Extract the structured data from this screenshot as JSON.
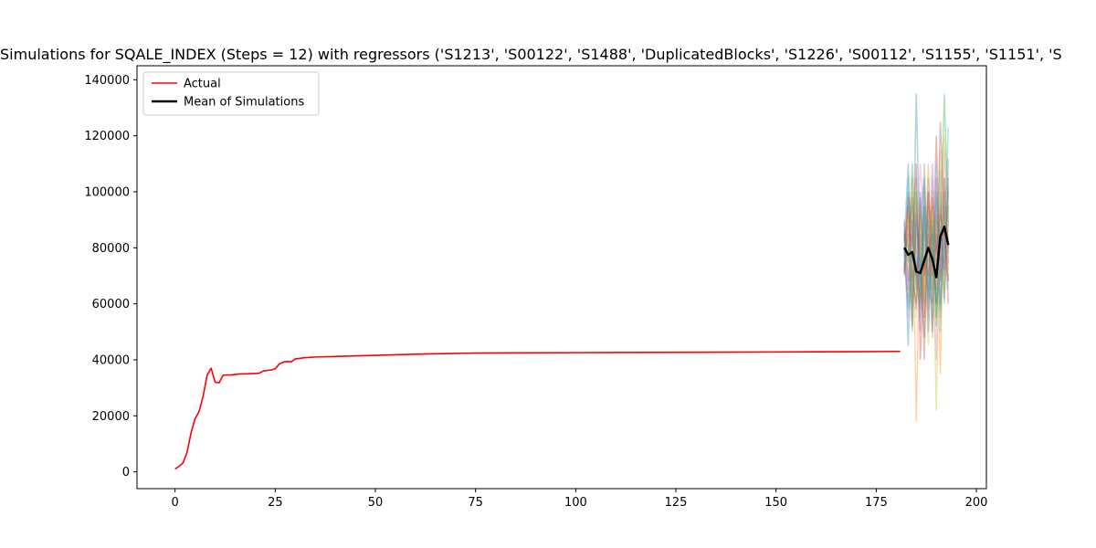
{
  "chart_data": {
    "type": "line",
    "title": "Simulations for SQALE_INDEX (Steps = 12) with regressors ('S1213', 'S00122', 'S1488', 'DuplicatedBlocks', 'S1226', 'S00112', 'S1155', 'S1151', 'S",
    "xlabel": "",
    "ylabel": "",
    "xlim": [
      -9.5,
      202.5
    ],
    "ylim": [
      -6000,
      145000
    ],
    "x_ticks": [
      0,
      25,
      50,
      75,
      100,
      125,
      150,
      175,
      200
    ],
    "y_ticks": [
      0,
      20000,
      40000,
      60000,
      80000,
      100000,
      120000,
      140000
    ],
    "grid": false,
    "legend_position": "upper left",
    "legend": [
      {
        "label": "Actual",
        "color": "#ff0000"
      },
      {
        "label": "Mean of Simulations",
        "color": "#000000"
      }
    ],
    "series": [
      {
        "name": "Actual",
        "color": "#ff0000",
        "x": [
          0,
          1,
          2,
          3,
          4,
          5,
          6,
          7,
          8,
          9,
          10,
          11,
          12,
          13,
          14,
          15,
          16,
          17,
          18,
          19,
          20,
          21,
          22,
          23,
          24,
          25,
          26,
          27,
          28,
          29,
          30,
          31,
          32,
          33,
          34,
          35,
          40,
          45,
          50,
          55,
          60,
          65,
          70,
          75,
          80,
          90,
          100,
          110,
          120,
          130,
          140,
          150,
          160,
          170,
          181
        ],
        "values": [
          1000,
          2000,
          3200,
          7000,
          14000,
          19000,
          21500,
          27000,
          34500,
          37000,
          32000,
          31800,
          34500,
          34600,
          34600,
          34800,
          34900,
          35000,
          35000,
          35100,
          35100,
          35200,
          36000,
          36200,
          36400,
          36800,
          38500,
          39200,
          39400,
          39300,
          40300,
          40500,
          40700,
          40800,
          40900,
          41000,
          41200,
          41400,
          41600,
          41800,
          42000,
          42150,
          42300,
          42400,
          42450,
          42500,
          42550,
          42600,
          42650,
          42700,
          42750,
          42800,
          42850,
          42900,
          43000
        ]
      },
      {
        "name": "Mean of Simulations",
        "color": "#000000",
        "x": [
          182,
          183,
          184,
          185,
          186,
          187,
          188,
          189,
          190,
          191,
          192,
          193
        ],
        "values": [
          80000,
          77500,
          78500,
          71500,
          71000,
          75500,
          80000,
          76000,
          69500,
          84000,
          87500,
          81000
        ]
      }
    ],
    "simulations": {
      "x": [
        182,
        183,
        184,
        185,
        186,
        187,
        188,
        189,
        190,
        191,
        192,
        193
      ],
      "colors": [
        "#1f77b4",
        "#ff7f0e",
        "#2ca02c",
        "#d62728",
        "#9467bd",
        "#8c564b",
        "#e377c2",
        "#7f7f7f",
        "#bcbd22",
        "#17becf"
      ],
      "runs": [
        [
          82000,
          110000,
          60000,
          135000,
          70000,
          95000,
          50000,
          88000,
          60000,
          70000,
          105000,
          78000
        ],
        [
          75000,
          60000,
          105000,
          18000,
          92000,
          70000,
          100000,
          60000,
          90000,
          55000,
          95000,
          72000
        ],
        [
          85000,
          80000,
          50000,
          100000,
          60000,
          110000,
          65000,
          95000,
          52000,
          100000,
          62000,
          90000
        ],
        [
          70000,
          95000,
          70000,
          60000,
          98000,
          55000,
          85000,
          70000,
          120000,
          68000,
          88000,
          60000
        ],
        [
          90000,
          65000,
          95000,
          80000,
          50000,
          90000,
          60000,
          110000,
          70000,
          95000,
          70000,
          105000
        ],
        [
          72000,
          100000,
          85000,
          70000,
          85000,
          40000,
          95000,
          50000,
          85000,
          60000,
          100000,
          80000
        ],
        [
          88000,
          55000,
          75000,
          95000,
          65000,
          100000,
          75000,
          80000,
          40000,
          108000,
          75000,
          70000
        ],
        [
          76000,
          85000,
          62000,
          90000,
          75000,
          60000,
          105000,
          65000,
          100000,
          75000,
          80000,
          95000
        ],
        [
          80000,
          70000,
          100000,
          55000,
          95000,
          80000,
          45000,
          100000,
          75000,
          115000,
          65000,
          85000
        ],
        [
          74000,
          105000,
          58000,
          105000,
          55000,
          85000,
          90000,
          55000,
          110000,
          50000,
          95000,
          65000
        ],
        [
          86000,
          45000,
          90000,
          65000,
          100000,
          70000,
          80000,
          85000,
          60000,
          88000,
          72000,
          100000
        ],
        [
          78000,
          92000,
          68000,
          85000,
          80000,
          65000,
          110000,
          70000,
          95000,
          35000,
          105000,
          75000
        ],
        [
          84000,
          75000,
          110000,
          72000,
          62000,
          95000,
          58000,
          90000,
          55000,
          80000,
          135000,
          90000
        ],
        [
          71000,
          88000,
          80000,
          110000,
          40000,
          75000,
          70000,
          98000,
          78000,
          92000,
          85000,
          68000
        ],
        [
          89000,
          68000,
          72000,
          58000,
          90000,
          105000,
          65000,
          60000,
          105000,
          70000,
          78000,
          102000
        ],
        [
          77000,
          98000,
          52000,
          92000,
          72000,
          48000,
          100000,
          78000,
          65000,
          125000,
          90000,
          82000
        ],
        [
          81000,
          62000,
          88000,
          78000,
          110000,
          85000,
          55000,
          105000,
          82000,
          62000,
          115000,
          74000
        ],
        [
          73000,
          80000,
          98000,
          68000,
          58000,
          92000,
          88000,
          48000,
          92000,
          85000,
          60000,
          112000
        ],
        [
          87000,
          90000,
          60000,
          100000,
          88000,
          62000,
          78000,
          92000,
          22000,
          102000,
          120000,
          88000
        ],
        [
          79000,
          58000,
          78000,
          88000,
          68000,
          102000,
          62000,
          72000,
          98000,
          58000,
          82000,
          123000
        ]
      ]
    }
  }
}
